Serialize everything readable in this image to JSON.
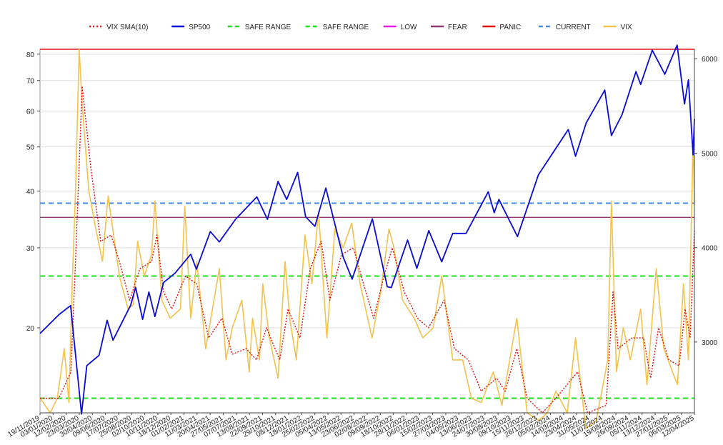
{
  "chart_data": {
    "type": "line",
    "title": "",
    "y_left": {
      "scale": "log",
      "ticks": [
        20,
        30,
        40,
        50,
        60,
        70,
        80
      ],
      "range": [
        13,
        82
      ]
    },
    "y_right": {
      "scale": "linear",
      "ticks": [
        3000,
        4000,
        5000,
        6000
      ],
      "range": [
        2250,
        6100
      ]
    },
    "x_range": [
      "2019-11-19",
      "2025-04-12"
    ],
    "x_tick_labels": [
      "19/11/2019",
      "03/01/2020",
      "12/02/2020",
      "23/03/2020",
      "30/04/2020",
      "09/06/2020",
      "17/07/2020",
      "25/08/2020",
      "02/10/2020",
      "10/11/2020",
      "18/12/2020",
      "01/02/2021",
      "11/03/2021",
      "20/04/2021",
      "27/05/2021",
      "07/07/2021",
      "13/08/2021",
      "22/09/2021",
      "29/10/2021",
      "08/12/2021",
      "18/01/2022",
      "25/02/2022",
      "05/04/2022",
      "13/05/2022",
      "23/06/2022",
      "02/08/2022",
      "09/09/2022",
      "18/10/2022",
      "28/11/2022",
      "06/01/2023",
      "15/02/2023",
      "27/03/2023",
      "04/05/2023",
      "13/06/2023",
      "24/07/2023",
      "30/08/2023",
      "09/10/2023",
      "15/11/2023",
      "26/12/2023",
      "05/02/2024",
      "14/03/2024",
      "23/04/2024",
      "31/05/2024",
      "11/07/2024",
      "19/08/2024",
      "26/09/2024",
      "05/11/2024",
      "13/12/2024",
      "27/01/2025",
      "06/03/2025",
      "12/04/2025"
    ],
    "grid": true,
    "legend": {
      "placement": "top-center",
      "entries": [
        {
          "label": "VIX SMA(10)",
          "color": "#e01010",
          "style": "dotted"
        },
        {
          "label": "SP500",
          "color": "#0a0ad8",
          "style": "solid"
        },
        {
          "label": "SAFE RANGE",
          "color": "#22dd22",
          "style": "dashed"
        },
        {
          "label": "SAFE RANGE",
          "color": "#22dd22",
          "style": "dashed"
        },
        {
          "label": "LOW",
          "color": "#e020e0",
          "style": "solid"
        },
        {
          "label": "FEAR",
          "color": "#8e3a6e",
          "style": "solid"
        },
        {
          "label": "PANIC",
          "color": "#e01010",
          "style": "solid"
        },
        {
          "label": "CURRENT",
          "color": "#4a8ae0",
          "style": "dashed"
        },
        {
          "label": "VIX",
          "color": "#f5c24a",
          "style": "solid"
        }
      ]
    },
    "levels": [
      {
        "name": "SAFE RANGE",
        "value": 26.0,
        "color": "#22dd22",
        "style": "dashed"
      },
      {
        "name": "SAFE RANGE",
        "value": 14.0,
        "color": "#22dd22",
        "style": "dashed"
      },
      {
        "name": "FEAR",
        "value": 35.0,
        "color": "#8e3a6e",
        "style": "solid"
      },
      {
        "name": "PANIC",
        "value": 82.0,
        "color": "#e01010",
        "style": "solid"
      },
      {
        "name": "CURRENT",
        "value": 37.6,
        "color": "#4a8ae0",
        "style": "dashed"
      }
    ],
    "series": [
      {
        "name": "VIX",
        "axis": "left",
        "color": "#f5c24a",
        "points": [
          [
            "2019-11-19",
            14.0
          ],
          [
            "2019-12-20",
            13.0
          ],
          [
            "2020-01-10",
            14.0
          ],
          [
            "2020-01-31",
            18.0
          ],
          [
            "2020-02-14",
            13.7
          ],
          [
            "2020-02-24",
            25.0
          ],
          [
            "2020-03-05",
            40.0
          ],
          [
            "2020-03-16",
            82.0
          ],
          [
            "2020-03-25",
            62.0
          ],
          [
            "2020-04-14",
            40.0
          ],
          [
            "2020-05-05",
            33.0
          ],
          [
            "2020-05-25",
            28.0
          ],
          [
            "2020-06-11",
            39.0
          ],
          [
            "2020-06-25",
            33.0
          ],
          [
            "2020-07-15",
            26.0
          ],
          [
            "2020-08-10",
            22.0
          ],
          [
            "2020-08-26",
            22.5
          ],
          [
            "2020-09-08",
            31.0
          ],
          [
            "2020-09-28",
            26.0
          ],
          [
            "2020-10-20",
            29.0
          ],
          [
            "2020-10-30",
            38.0
          ],
          [
            "2020-11-20",
            23.0
          ],
          [
            "2020-12-15",
            21.0
          ],
          [
            "2021-01-15",
            22.0
          ],
          [
            "2021-01-28",
            37.0
          ],
          [
            "2021-02-15",
            21.0
          ],
          [
            "2021-03-05",
            28.0
          ],
          [
            "2021-04-01",
            18.0
          ],
          [
            "2021-05-12",
            27.0
          ],
          [
            "2021-06-01",
            17.0
          ],
          [
            "2021-06-20",
            20.0
          ],
          [
            "2021-07-19",
            23.0
          ],
          [
            "2021-08-10",
            16.0
          ],
          [
            "2021-08-20",
            21.0
          ],
          [
            "2021-09-10",
            17.0
          ],
          [
            "2021-09-20",
            25.0
          ],
          [
            "2021-10-10",
            19.0
          ],
          [
            "2021-11-05",
            15.5
          ],
          [
            "2021-11-26",
            28.0
          ],
          [
            "2021-12-10",
            21.0
          ],
          [
            "2021-12-30",
            17.0
          ],
          [
            "2022-01-25",
            32.0
          ],
          [
            "2022-02-15",
            25.0
          ],
          [
            "2022-03-07",
            36.0
          ],
          [
            "2022-04-01",
            19.0
          ],
          [
            "2022-04-25",
            33.0
          ],
          [
            "2022-05-20",
            30.0
          ],
          [
            "2022-06-15",
            34.0
          ],
          [
            "2022-07-10",
            25.0
          ],
          [
            "2022-08-15",
            19.0
          ],
          [
            "2022-09-10",
            24.0
          ],
          [
            "2022-10-05",
            33.0
          ],
          [
            "2022-10-20",
            30.0
          ],
          [
            "2022-11-15",
            23.0
          ],
          [
            "2022-12-20",
            21.0
          ],
          [
            "2023-01-15",
            19.0
          ],
          [
            "2023-02-15",
            20.0
          ],
          [
            "2023-03-13",
            26.0
          ],
          [
            "2023-04-15",
            17.0
          ],
          [
            "2023-05-15",
            17.0
          ],
          [
            "2023-06-10",
            14.0
          ],
          [
            "2023-07-10",
            13.7
          ],
          [
            "2023-08-15",
            16.0
          ],
          [
            "2023-09-10",
            13.5
          ],
          [
            "2023-10-25",
            21.0
          ],
          [
            "2023-11-25",
            13.0
          ],
          [
            "2023-12-30",
            12.5
          ],
          [
            "2024-01-25",
            13.0
          ],
          [
            "2024-02-20",
            14.5
          ],
          [
            "2024-03-25",
            13.0
          ],
          [
            "2024-04-19",
            19.0
          ],
          [
            "2024-05-20",
            12.0
          ],
          [
            "2024-06-20",
            12.5
          ],
          [
            "2024-07-25",
            17.0
          ],
          [
            "2024-08-05",
            38.0
          ],
          [
            "2024-08-20",
            16.0
          ],
          [
            "2024-09-10",
            20.0
          ],
          [
            "2024-10-01",
            17.0
          ],
          [
            "2024-11-01",
            22.0
          ],
          [
            "2024-11-20",
            15.0
          ],
          [
            "2024-12-18",
            27.0
          ],
          [
            "2025-01-10",
            18.0
          ],
          [
            "2025-02-05",
            16.0
          ],
          [
            "2025-02-20",
            15.0
          ],
          [
            "2025-03-10",
            25.0
          ],
          [
            "2025-03-25",
            17.0
          ],
          [
            "2025-04-08",
            52.0
          ],
          [
            "2025-04-12",
            37.6
          ]
        ]
      },
      {
        "name": "VIX SMA(10)",
        "axis": "left",
        "color": "#e01010",
        "points": [
          [
            "2019-11-19",
            14.0
          ],
          [
            "2020-01-15",
            14.0
          ],
          [
            "2020-02-20",
            16.0
          ],
          [
            "2020-03-05",
            28.0
          ],
          [
            "2020-03-25",
            68.0
          ],
          [
            "2020-04-20",
            45.0
          ],
          [
            "2020-05-20",
            31.0
          ],
          [
            "2020-06-20",
            32.0
          ],
          [
            "2020-07-15",
            28.0
          ],
          [
            "2020-08-15",
            23.0
          ],
          [
            "2020-09-15",
            27.0
          ],
          [
            "2020-10-20",
            28.0
          ],
          [
            "2020-11-05",
            32.0
          ],
          [
            "2020-11-25",
            24.0
          ],
          [
            "2020-12-20",
            22.0
          ],
          [
            "2021-01-30",
            26.0
          ],
          [
            "2021-03-05",
            25.0
          ],
          [
            "2021-04-10",
            19.0
          ],
          [
            "2021-05-20",
            21.0
          ],
          [
            "2021-06-20",
            17.5
          ],
          [
            "2021-08-01",
            18.0
          ],
          [
            "2021-09-01",
            17.0
          ],
          [
            "2021-10-01",
            20.0
          ],
          [
            "2021-11-10",
            17.0
          ],
          [
            "2021-12-05",
            22.0
          ],
          [
            "2022-01-10",
            19.0
          ],
          [
            "2022-02-10",
            27.0
          ],
          [
            "2022-03-15",
            31.0
          ],
          [
            "2022-04-10",
            23.0
          ],
          [
            "2022-05-15",
            29.0
          ],
          [
            "2022-06-20",
            30.0
          ],
          [
            "2022-07-20",
            25.0
          ],
          [
            "2022-08-20",
            21.0
          ],
          [
            "2022-09-20",
            26.0
          ],
          [
            "2022-10-15",
            30.0
          ],
          [
            "2022-11-20",
            24.0
          ],
          [
            "2022-12-30",
            21.0
          ],
          [
            "2023-02-01",
            20.0
          ],
          [
            "2023-03-20",
            23.0
          ],
          [
            "2023-04-20",
            18.0
          ],
          [
            "2023-06-01",
            17.0
          ],
          [
            "2023-07-10",
            14.5
          ],
          [
            "2023-08-25",
            15.5
          ],
          [
            "2023-09-20",
            14.5
          ],
          [
            "2023-10-25",
            18.0
          ],
          [
            "2023-11-25",
            14.0
          ],
          [
            "2024-01-10",
            13.0
          ],
          [
            "2024-02-20",
            14.0
          ],
          [
            "2024-04-25",
            16.0
          ],
          [
            "2024-05-25",
            13.0
          ],
          [
            "2024-07-20",
            13.5
          ],
          [
            "2024-08-10",
            24.0
          ],
          [
            "2024-08-25",
            18.0
          ],
          [
            "2024-10-05",
            19.0
          ],
          [
            "2024-11-10",
            19.0
          ],
          [
            "2024-12-01",
            15.5
          ],
          [
            "2024-12-25",
            20.0
          ],
          [
            "2025-01-25",
            17.0
          ],
          [
            "2025-02-25",
            16.5
          ],
          [
            "2025-03-15",
            22.0
          ],
          [
            "2025-03-30",
            19.0
          ],
          [
            "2025-04-12",
            33.0
          ]
        ]
      },
      {
        "name": "SP500",
        "axis": "right",
        "color": "#0a0ad8",
        "points": [
          [
            "2019-11-19",
            3090
          ],
          [
            "2020-01-15",
            3290
          ],
          [
            "2020-02-19",
            3386
          ],
          [
            "2020-03-23",
            2237
          ],
          [
            "2020-04-08",
            2750
          ],
          [
            "2020-05-15",
            2860
          ],
          [
            "2020-06-08",
            3230
          ],
          [
            "2020-06-26",
            3020
          ],
          [
            "2020-08-18",
            3390
          ],
          [
            "2020-09-02",
            3580
          ],
          [
            "2020-09-23",
            3240
          ],
          [
            "2020-10-12",
            3530
          ],
          [
            "2020-10-30",
            3270
          ],
          [
            "2020-11-25",
            3630
          ],
          [
            "2020-12-30",
            3730
          ],
          [
            "2021-02-15",
            3930
          ],
          [
            "2021-03-04",
            3770
          ],
          [
            "2021-04-15",
            4170
          ],
          [
            "2021-05-12",
            4060
          ],
          [
            "2021-06-30",
            4300
          ],
          [
            "2021-08-15",
            4470
          ],
          [
            "2021-09-02",
            4537
          ],
          [
            "2021-10-04",
            4300
          ],
          [
            "2021-11-05",
            4700
          ],
          [
            "2021-12-01",
            4510
          ],
          [
            "2022-01-03",
            4796
          ],
          [
            "2022-01-27",
            4326
          ],
          [
            "2022-02-24",
            4225
          ],
          [
            "2022-03-29",
            4630
          ],
          [
            "2022-05-20",
            3900
          ],
          [
            "2022-06-16",
            3666
          ],
          [
            "2022-08-16",
            4305
          ],
          [
            "2022-09-30",
            3585
          ],
          [
            "2022-10-12",
            3577
          ],
          [
            "2022-11-30",
            4080
          ],
          [
            "2022-12-28",
            3780
          ],
          [
            "2023-02-02",
            4180
          ],
          [
            "2023-03-13",
            3850
          ],
          [
            "2023-04-15",
            4150
          ],
          [
            "2023-05-25",
            4150
          ],
          [
            "2023-07-31",
            4590
          ],
          [
            "2023-08-18",
            4370
          ],
          [
            "2023-09-01",
            4510
          ],
          [
            "2023-10-27",
            4117
          ],
          [
            "2023-12-29",
            4770
          ],
          [
            "2024-03-28",
            5250
          ],
          [
            "2024-04-19",
            4967
          ],
          [
            "2024-05-21",
            5320
          ],
          [
            "2024-07-16",
            5667
          ],
          [
            "2024-08-05",
            5186
          ],
          [
            "2024-09-06",
            5408
          ],
          [
            "2024-10-18",
            5864
          ],
          [
            "2024-11-01",
            5728
          ],
          [
            "2024-12-06",
            6090
          ],
          [
            "2025-01-13",
            5836
          ],
          [
            "2025-02-19",
            6144
          ],
          [
            "2025-03-13",
            5521
          ],
          [
            "2025-03-25",
            5776
          ],
          [
            "2025-04-08",
            4982
          ],
          [
            "2025-04-12",
            5363
          ]
        ]
      }
    ]
  }
}
